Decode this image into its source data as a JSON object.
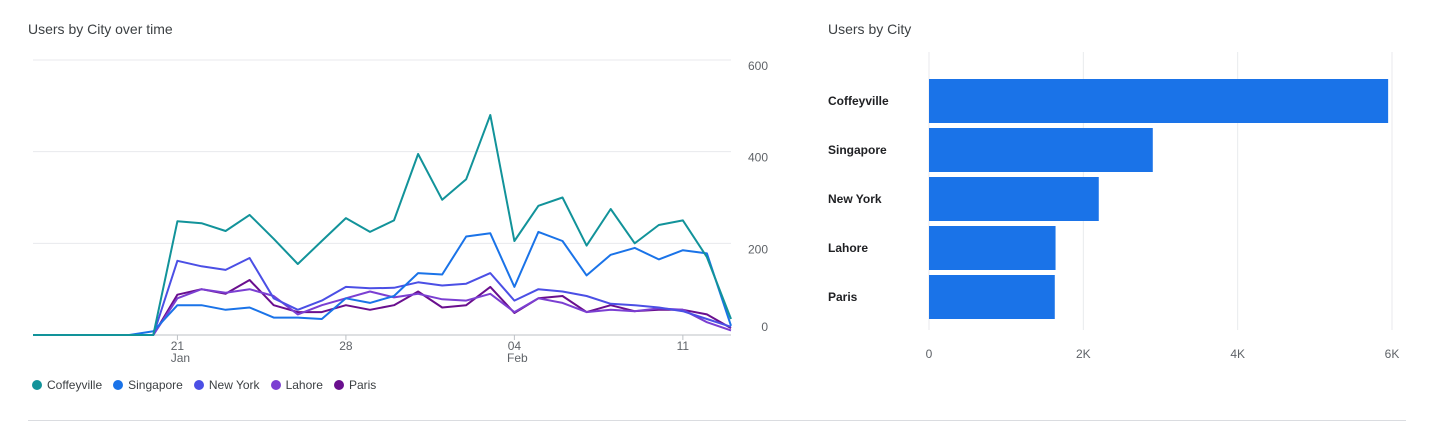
{
  "left_card": {
    "title": "Users by City over time"
  },
  "right_card": {
    "title": "Users by City"
  },
  "chart_data": [
    {
      "type": "line",
      "title": "Users by City over time",
      "x_ticks": [
        {
          "index": 6,
          "label": "21",
          "sublabel": "Jan"
        },
        {
          "index": 13,
          "label": "28",
          "sublabel": ""
        },
        {
          "index": 20,
          "label": "04",
          "sublabel": "Feb"
        },
        {
          "index": 27,
          "label": "11",
          "sublabel": ""
        }
      ],
      "y_ticks": [
        0,
        200,
        400,
        600
      ],
      "ylim": [
        0,
        600
      ],
      "y_axis_side": "right",
      "grid": true,
      "legend_position": "bottom-left",
      "series": [
        {
          "name": "Coffeyville",
          "color": "#12939a",
          "values": [
            0,
            0,
            0,
            0,
            0,
            0,
            248,
            244,
            227,
            262,
            210,
            155,
            205,
            255,
            225,
            250,
            395,
            295,
            340,
            480,
            205,
            282,
            300,
            195,
            275,
            200,
            240,
            250,
            170,
            35
          ]
        },
        {
          "name": "Singapore",
          "color": "#1a73e8",
          "values": [
            0,
            0,
            0,
            0,
            0,
            8,
            65,
            65,
            55,
            60,
            38,
            38,
            35,
            80,
            70,
            85,
            135,
            132,
            215,
            222,
            105,
            225,
            205,
            130,
            175,
            190,
            165,
            185,
            178,
            20
          ]
        },
        {
          "name": "New York",
          "color": "#4b4fe5",
          "values": [
            0,
            0,
            0,
            0,
            0,
            0,
            162,
            150,
            142,
            168,
            80,
            55,
            75,
            105,
            102,
            103,
            115,
            108,
            112,
            135,
            75,
            100,
            95,
            85,
            68,
            65,
            60,
            52,
            35,
            18
          ]
        },
        {
          "name": "Lahore",
          "color": "#7b3fd2",
          "values": [
            0,
            0,
            0,
            0,
            0,
            0,
            80,
            100,
            92,
            100,
            85,
            45,
            65,
            80,
            95,
            82,
            90,
            78,
            75,
            90,
            50,
            80,
            70,
            50,
            55,
            52,
            58,
            55,
            28,
            10
          ]
        },
        {
          "name": "Paris",
          "color": "#6a0f8e",
          "values": [
            0,
            0,
            0,
            0,
            0,
            0,
            88,
            100,
            90,
            120,
            65,
            50,
            50,
            65,
            55,
            65,
            95,
            60,
            65,
            105,
            48,
            80,
            85,
            50,
            65,
            52,
            55,
            55,
            45,
            15
          ]
        }
      ]
    },
    {
      "type": "bar",
      "orientation": "horizontal",
      "title": "Users by City",
      "categories": [
        "Coffeyville",
        "Singapore",
        "New York",
        "Lahore",
        "Paris"
      ],
      "values": [
        5950,
        2900,
        2200,
        1640,
        1630
      ],
      "color": "#1a73e8",
      "xlim": [
        0,
        6000
      ],
      "x_ticks": [
        {
          "value": 0,
          "label": "0"
        },
        {
          "value": 2000,
          "label": "2K"
        },
        {
          "value": 4000,
          "label": "4K"
        },
        {
          "value": 6000,
          "label": "6K"
        }
      ],
      "grid": true
    }
  ]
}
